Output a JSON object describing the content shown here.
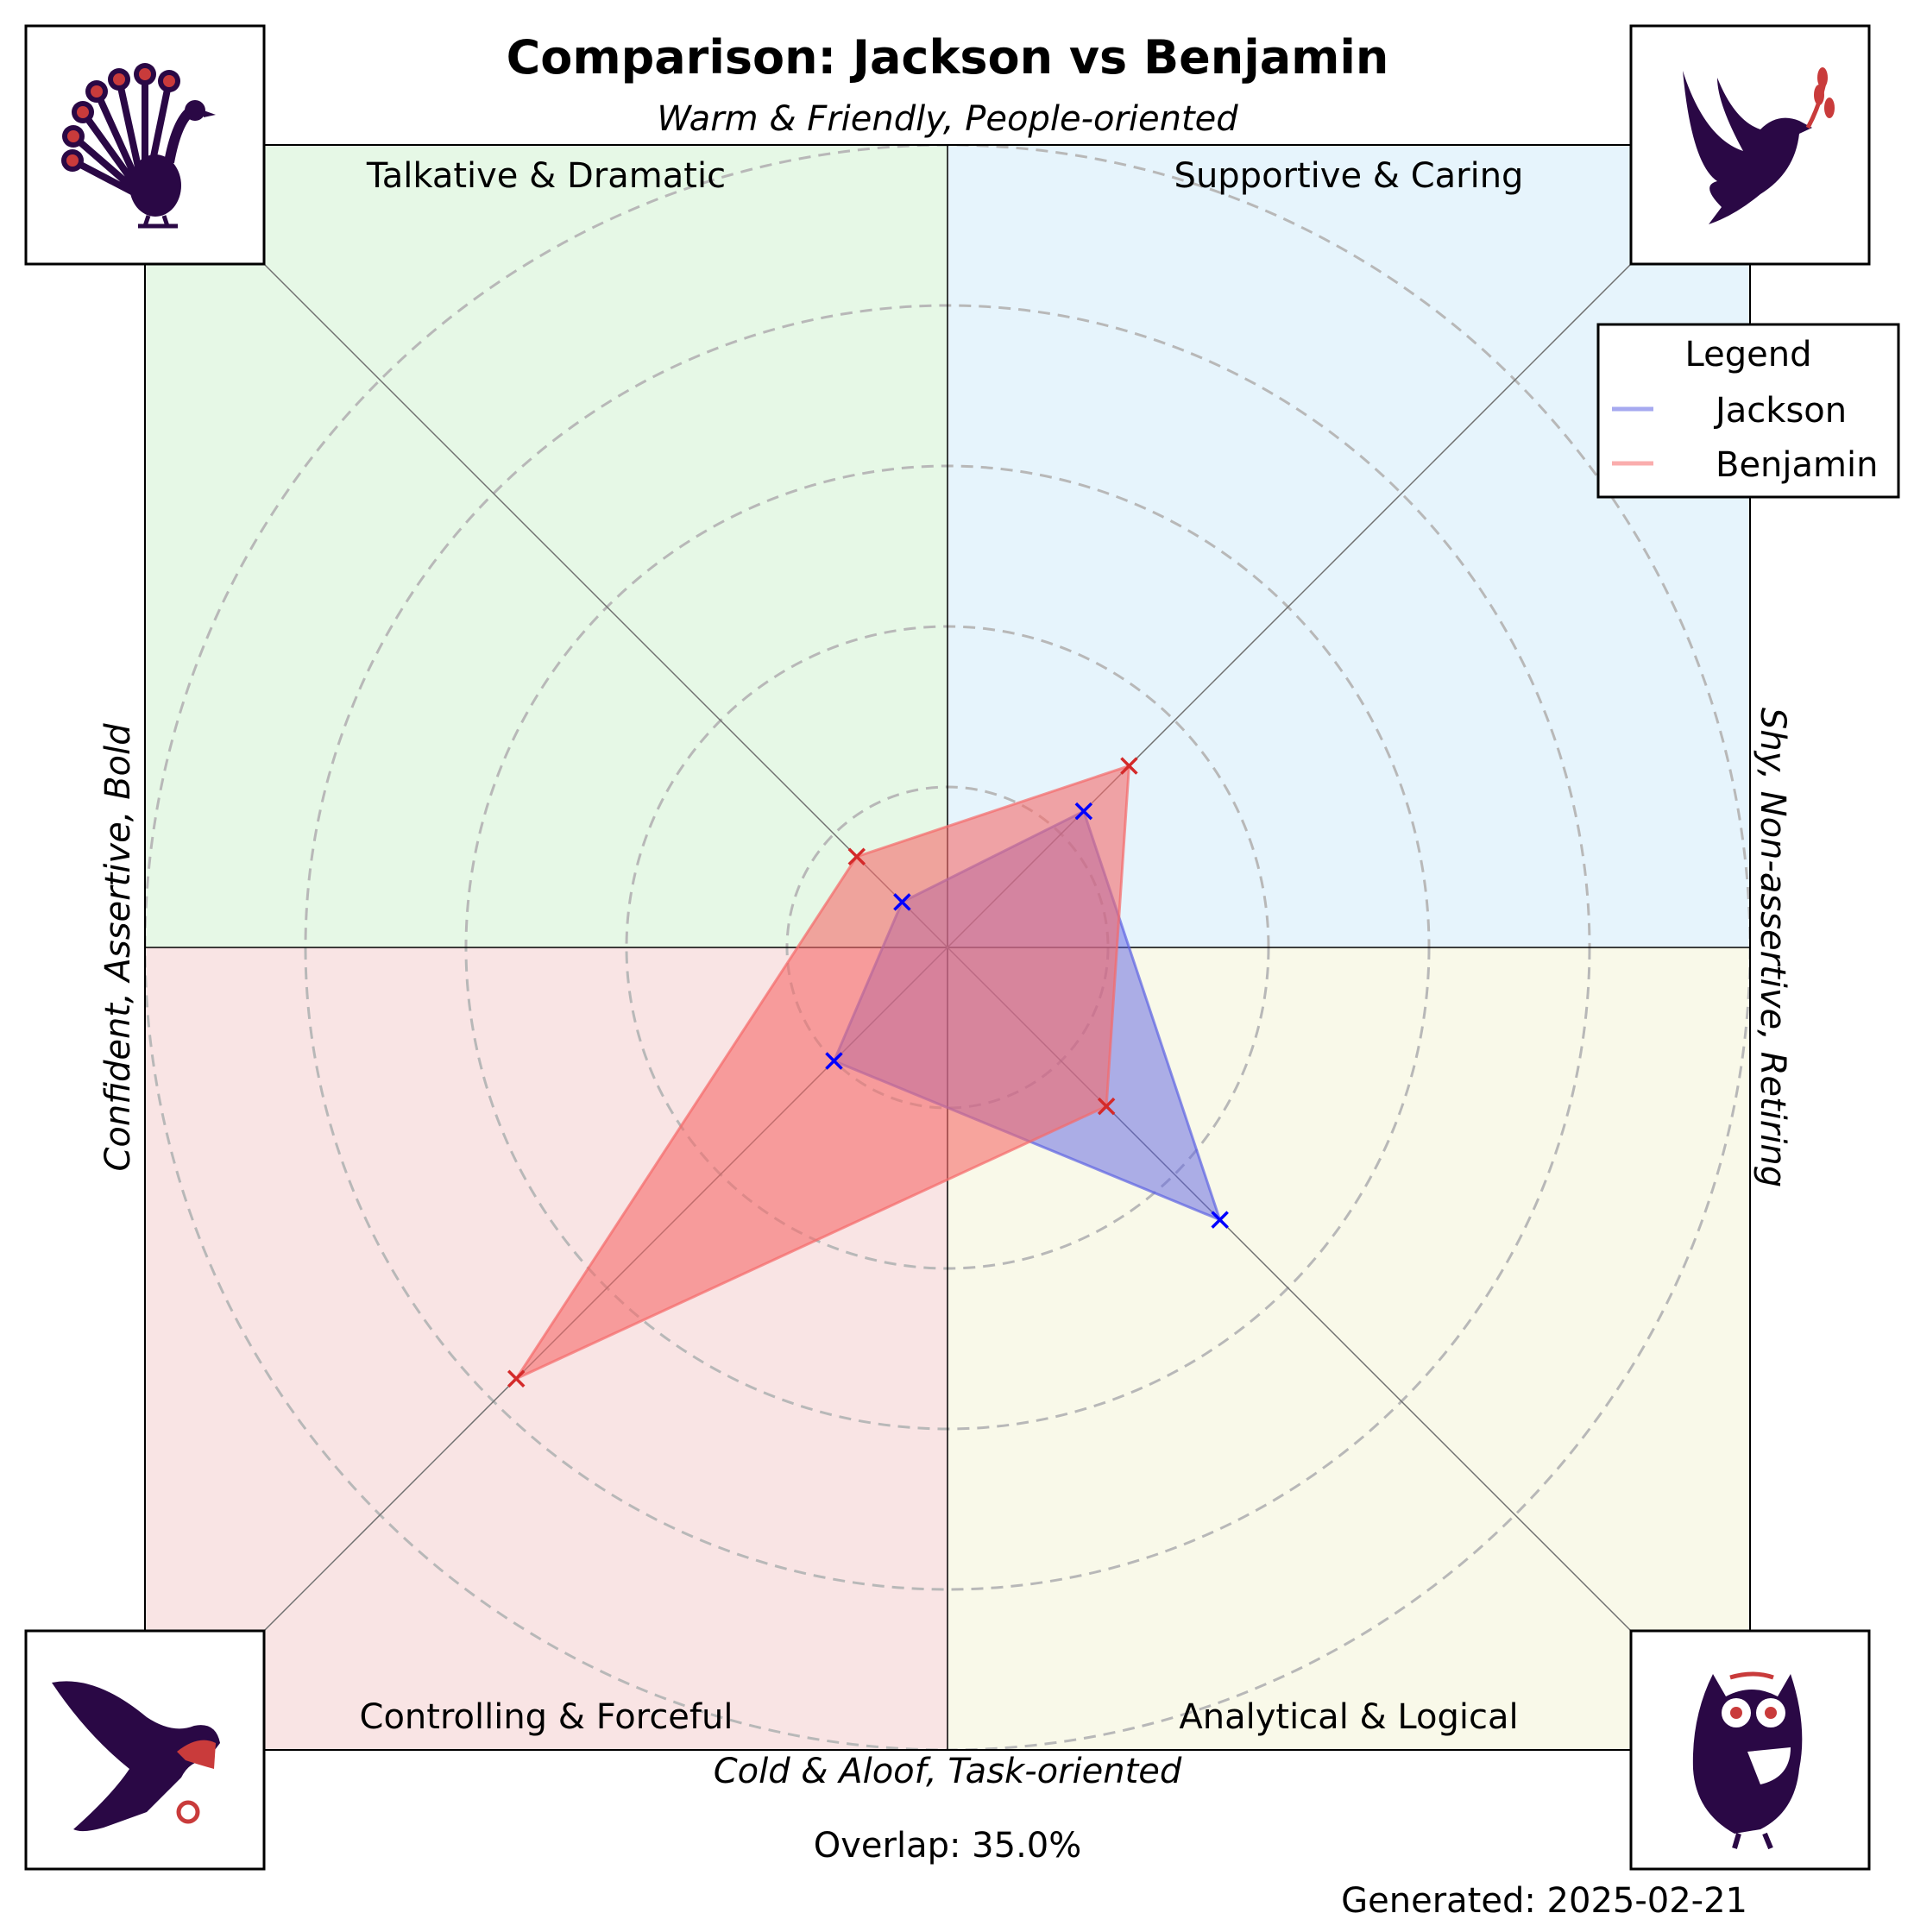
{
  "chart_data": {
    "type": "radar",
    "title": "Comparison: Jackson vs Benjamin",
    "axis_labels": {
      "top": "Warm & Friendly, People-oriented",
      "bottom": "Cold & Aloof, Task-oriented",
      "left": "Confident, Assertive, Bold",
      "right": "Shy, Non-assertive, Retiring"
    },
    "quadrants": [
      {
        "label": "Talkative & Dramatic",
        "position": "top-left",
        "color": "#e6f8e6",
        "icon": "peacock-icon"
      },
      {
        "label": "Supportive & Caring",
        "position": "top-right",
        "color": "#e6f4fc",
        "icon": "dove-icon"
      },
      {
        "label": "Controlling & Forceful",
        "position": "bottom-left",
        "color": "#f9e4e4",
        "icon": "eagle-icon"
      },
      {
        "label": "Analytical & Logical",
        "position": "bottom-right",
        "color": "#f9f9e9",
        "icon": "owl-icon"
      }
    ],
    "axes_order": [
      "Supportive & Caring",
      "Talkative & Dramatic",
      "Controlling & Forceful",
      "Analytical & Logical"
    ],
    "rmax": 5,
    "rings": [
      1,
      2,
      3,
      4,
      5
    ],
    "grid": true,
    "series": [
      {
        "name": "Jackson",
        "color": "#0000ff",
        "fill": "#5d62e3",
        "values": [
          1.2,
          0.4,
          1.0,
          2.4
        ]
      },
      {
        "name": "Benjamin",
        "color": "#d42a2a",
        "fill": "#f56a6a",
        "values": [
          1.6,
          0.8,
          3.8,
          1.4
        ]
      }
    ],
    "legend": {
      "title": "Legend",
      "placement": "top-right"
    },
    "annotations": {
      "overlap": "Overlap: 35.0%",
      "generated": "Generated: 2025-02-21"
    }
  }
}
